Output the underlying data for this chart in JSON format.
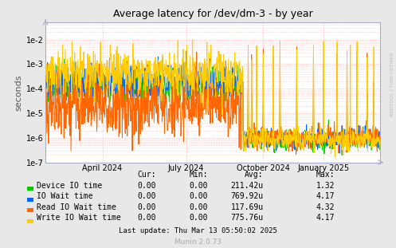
{
  "title": "Average latency for /dev/dm-3 - by year",
  "ylabel": "seconds",
  "xlabel_ticks": [
    "April 2024",
    "July 2024",
    "October 2024",
    "January 2025"
  ],
  "background_color": "#e8e8e8",
  "plot_bg_color": "#ffffff",
  "grid_color": "#ffaaaa",
  "series": [
    {
      "label": "Device IO time",
      "color": "#00cc00"
    },
    {
      "label": "IO Wait time",
      "color": "#0066ff"
    },
    {
      "label": "Read IO Wait time",
      "color": "#ff6600"
    },
    {
      "label": "Write IO Wait time",
      "color": "#ffcc00"
    }
  ],
  "legend_data": {
    "headers": [
      "Cur:",
      "Min:",
      "Avg:",
      "Max:"
    ],
    "rows": [
      [
        "Device IO time",
        "0.00",
        "0.00",
        "211.42u",
        "1.32"
      ],
      [
        "IO Wait time",
        "0.00",
        "0.00",
        "769.92u",
        "4.17"
      ],
      [
        "Read IO Wait time",
        "0.00",
        "0.00",
        "117.69u",
        "4.32"
      ],
      [
        "Write IO Wait time",
        "0.00",
        "0.00",
        "775.76u",
        "4.17"
      ]
    ]
  },
  "footer": "Last update: Thu Mar 13 05:50:02 2025",
  "watermark": "Munin 2.0.73",
  "rrdtool_label": "RRDTOOL / TOBI OETIKER",
  "xtick_pos": [
    0.17,
    0.42,
    0.65,
    0.83
  ],
  "n_total": 1000,
  "n_high": 590,
  "ylim_low": 1e-07,
  "ylim_high": 0.05
}
